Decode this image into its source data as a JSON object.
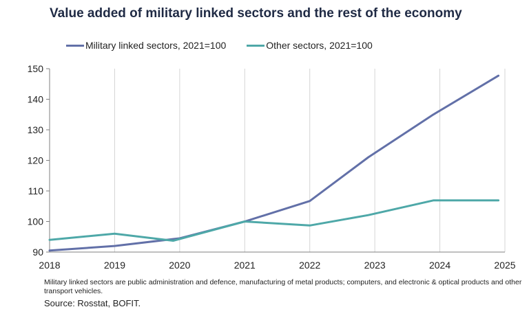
{
  "chart_data": {
    "type": "line",
    "title": "Value added of military linked sectors and the rest of the economy",
    "xlabel": "",
    "ylabel": "",
    "x": [
      2018,
      2019,
      2020,
      2021,
      2022,
      2023,
      2024,
      2025
    ],
    "x_tick_labels": [
      "2018",
      "2019",
      "2020",
      "2021",
      "2022",
      "2023",
      "2024",
      "2025"
    ],
    "y_tick_labels": [
      "90",
      "100",
      "110",
      "120",
      "130",
      "140",
      "150"
    ],
    "y_ticks": [
      90,
      100,
      110,
      120,
      130,
      140,
      150
    ],
    "xlim": [
      2018,
      2025
    ],
    "ylim": [
      90,
      150
    ],
    "grid": "vertical",
    "legend_position": "top",
    "series": [
      {
        "name": "Military linked sectors, 2021=100",
        "color": "#6270a8",
        "points": [
          [
            2018.0,
            90.5
          ],
          [
            2019.0,
            92.0
          ],
          [
            2020.0,
            94.5
          ],
          [
            2021.0,
            100.0
          ],
          [
            2022.0,
            106.7
          ],
          [
            2022.9,
            121.0
          ],
          [
            2023.9,
            135.0
          ],
          [
            2024.9,
            147.7
          ]
        ]
      },
      {
        "name": "Other sectors, 2021=100",
        "color": "#4ea8a8",
        "points": [
          [
            2018.0,
            94.0
          ],
          [
            2019.0,
            96.0
          ],
          [
            2019.9,
            93.7
          ],
          [
            2021.0,
            100.0
          ],
          [
            2022.0,
            98.7
          ],
          [
            2022.9,
            102.1
          ],
          [
            2023.9,
            106.9
          ],
          [
            2024.9,
            106.9
          ]
        ]
      }
    ]
  },
  "footer": {
    "note": "Military linked sectors are public administration and defence, manufacturing of metal products; computers, and electronic & optical products and other transport vehicles.",
    "source": "Source: Rosstat, BOFIT."
  }
}
